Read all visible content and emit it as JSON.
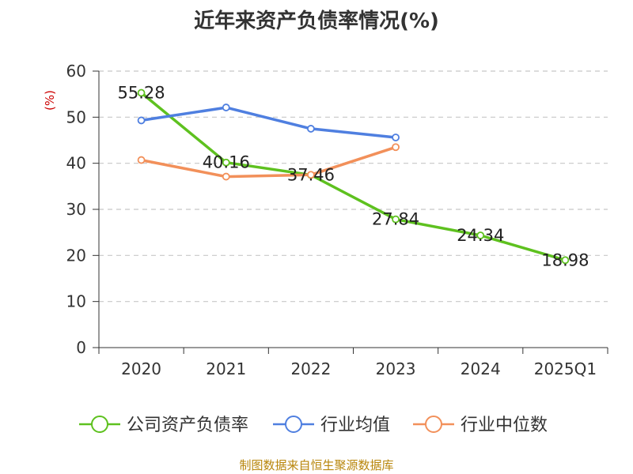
{
  "chart_data": {
    "type": "line",
    "title": "近年来资产负债率情况(%)",
    "ylabel": "(%)",
    "xlabel": "",
    "categories": [
      "2020",
      "2021",
      "2022",
      "2023",
      "2024",
      "2025Q1"
    ],
    "ylim": [
      0,
      60
    ],
    "yticks": [
      0,
      10,
      20,
      30,
      40,
      50,
      60
    ],
    "grid": true,
    "legend": "bottom",
    "series": [
      {
        "name": "公司资产负债率",
        "color": "#5ec11f",
        "values": [
          55.28,
          40.16,
          37.46,
          27.84,
          24.34,
          18.98
        ],
        "labels": [
          "55.28",
          "40.16",
          "37.46",
          "27.84",
          "24.34",
          "18.98"
        ]
      },
      {
        "name": "行业均值",
        "color": "#4f7fe0",
        "values": [
          49.3,
          52.1,
          47.5,
          45.6,
          null,
          null
        ]
      },
      {
        "name": "行业中位数",
        "color": "#f2905a",
        "values": [
          40.7,
          37.1,
          37.5,
          43.5,
          null,
          null
        ]
      }
    ]
  },
  "source": "制图数据来自恒生聚源数据库"
}
